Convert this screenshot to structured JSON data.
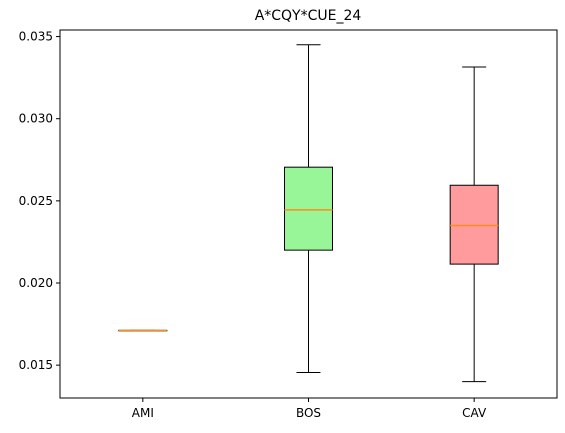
{
  "chart_data": {
    "type": "box",
    "title": "A*CQY*CUE_24",
    "xlabel": "",
    "ylabel": "",
    "ylim": [
      0.013,
      0.0354
    ],
    "yticks": [
      0.015,
      0.02,
      0.025,
      0.03,
      0.035
    ],
    "ytick_labels": [
      "0.015",
      "0.020",
      "0.025",
      "0.030",
      "0.035"
    ],
    "grid": false,
    "categories": [
      "AMI",
      "BOS",
      "CAV"
    ],
    "boxes": [
      {
        "category": "AMI",
        "whisker_low": 0.01712,
        "q1": 0.01712,
        "median": 0.01712,
        "q3": 0.01712,
        "whisker_high": 0.01712,
        "color": "#90ee90"
      },
      {
        "category": "BOS",
        "whisker_low": 0.01455,
        "q1": 0.022,
        "median": 0.02445,
        "q3": 0.02705,
        "whisker_high": 0.0345,
        "color": "#98f698"
      },
      {
        "category": "CAV",
        "whisker_low": 0.014,
        "q1": 0.02115,
        "median": 0.0235,
        "q3": 0.02595,
        "whisker_high": 0.03315,
        "color": "#ff9b9d"
      }
    ],
    "median_color": "#ff8c1a"
  }
}
